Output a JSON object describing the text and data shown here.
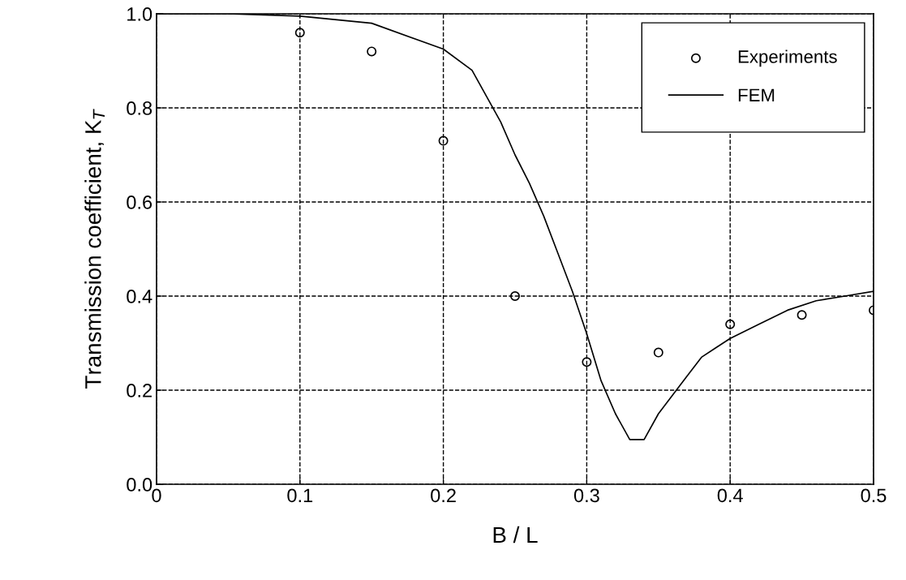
{
  "chart_data": {
    "type": "line",
    "xlabel": "B / L",
    "ylabel": "Transmission coefficient, K$_{T}$",
    "xlim": [
      0,
      0.5
    ],
    "ylim": [
      0,
      1.0
    ],
    "xticks": [
      0,
      0.1,
      0.2,
      0.3,
      0.4,
      0.5
    ],
    "yticks": [
      {
        "value": 0,
        "label": "0.0"
      },
      0.2,
      0.4,
      0.6,
      0.8,
      {
        "value": 1,
        "label": "1.0"
      }
    ],
    "grid": true,
    "legend": "top right",
    "series": [
      {
        "name": "Experiments",
        "type": "scatter",
        "marker": "circle",
        "color": "#000000",
        "x": [
          0.1,
          0.15,
          0.2,
          0.25,
          0.3,
          0.35,
          0.4,
          0.45,
          0.5
        ],
        "values": [
          0.96,
          0.92,
          0.73,
          0.4,
          0.26,
          0.28,
          0.34,
          0.36,
          0.37
        ]
      },
      {
        "name": "FEM",
        "line_style": "solid",
        "color": "#000000",
        "x": [
          0,
          0.05,
          0.1,
          0.15,
          0.2,
          0.22,
          0.24,
          0.25,
          0.26,
          0.27,
          0.28,
          0.29,
          0.3,
          0.31,
          0.32,
          0.33,
          0.34,
          0.35,
          0.36,
          0.37,
          0.38,
          0.39,
          0.4,
          0.42,
          0.44,
          0.46,
          0.48,
          0.5
        ],
        "values": [
          1.0,
          1.0,
          0.995,
          0.98,
          0.925,
          0.88,
          0.77,
          0.7,
          0.64,
          0.57,
          0.49,
          0.41,
          0.32,
          0.22,
          0.15,
          0.095,
          0.095,
          0.15,
          0.19,
          0.23,
          0.27,
          0.29,
          0.31,
          0.34,
          0.37,
          0.39,
          0.4,
          0.41
        ]
      }
    ]
  }
}
